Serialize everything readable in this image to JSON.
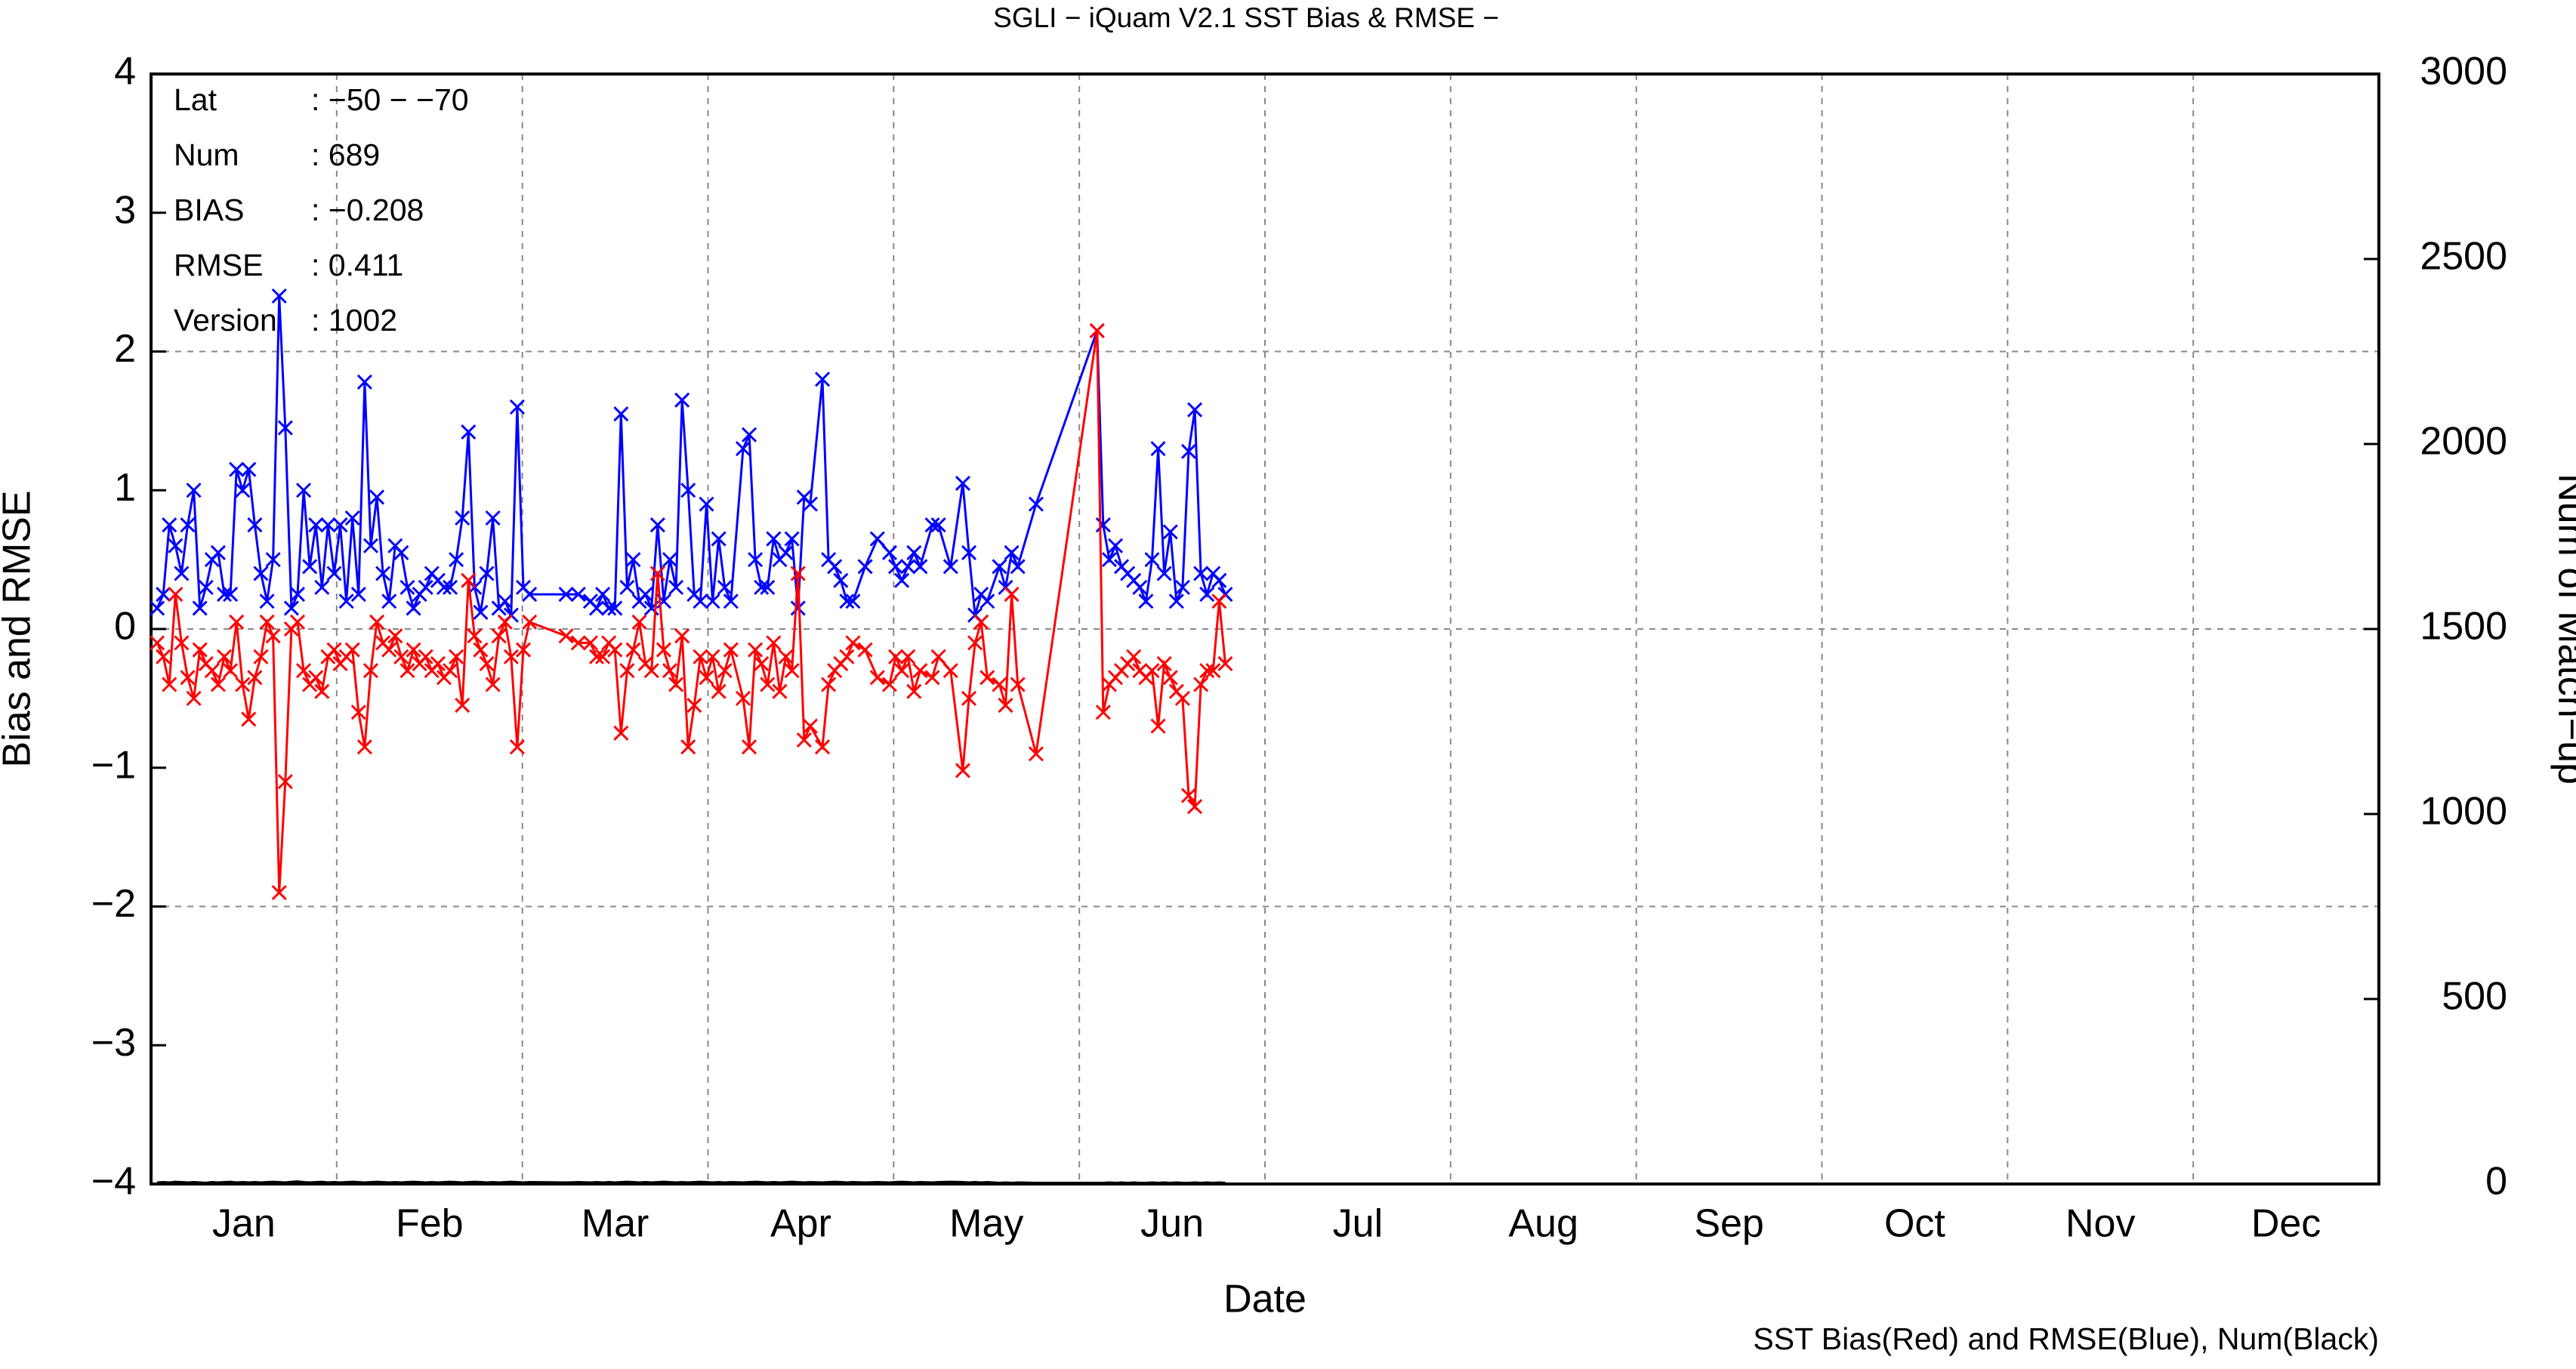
{
  "chart_data": {
    "type": "line",
    "title": "SGLI − iQuam V2.1 SST Bias & RMSE  −",
    "x_label": "Date",
    "y_label": "Bias and RMSE",
    "y2_label": "Num of Match−up",
    "footer": "SST Bias(Red) and RMSE(Blue), Num(Black)",
    "annotations": [
      {
        "label": "Lat",
        "value": ": −50 − −70"
      },
      {
        "label": "Num",
        "value": ": 689"
      },
      {
        "label": "BIAS",
        "value": ": −0.208"
      },
      {
        "label": "RMSE",
        "value": ": 0.411"
      },
      {
        "label": "Version",
        "value": ": 1002"
      }
    ],
    "categories": [
      "Jan",
      "Feb",
      "Mar",
      "Apr",
      "May",
      "Jun",
      "Jul",
      "Aug",
      "Sep",
      "Oct",
      "Nov",
      "Dec"
    ],
    "xlim": [
      0,
      365
    ],
    "ylim": [
      -4,
      4
    ],
    "yticks": [
      {
        "value": -4,
        "label": "−4"
      },
      {
        "value": -3,
        "label": "−3"
      },
      {
        "value": -2,
        "label": "−2"
      },
      {
        "value": -1,
        "label": "−1"
      },
      0,
      1,
      2,
      3,
      4
    ],
    "ygrid": [
      -2,
      0,
      2
    ],
    "y2lim": [
      0,
      3000
    ],
    "y2ticks": [
      0,
      500,
      1000,
      1500,
      2000,
      2500,
      3000
    ],
    "grid": true,
    "x": [
      1,
      2,
      3,
      4,
      5,
      6,
      7,
      8,
      9,
      10,
      11,
      12,
      13,
      14,
      15,
      16,
      17,
      18,
      19,
      20,
      21,
      22,
      23,
      24,
      25,
      26,
      27,
      28,
      29,
      30,
      31,
      32,
      33,
      34,
      35,
      36,
      37,
      38,
      39,
      40,
      41,
      42,
      43,
      44,
      45,
      46,
      47,
      48,
      49,
      50,
      51,
      52,
      53,
      54,
      55,
      56,
      57,
      58,
      59,
      60,
      61,
      62,
      68,
      70,
      72,
      73,
      74,
      75,
      76,
      77,
      78,
      79,
      80,
      81,
      82,
      83,
      84,
      85,
      86,
      87,
      88,
      89,
      90,
      91,
      92,
      93,
      94,
      95,
      97,
      98,
      99,
      100,
      101,
      102,
      103,
      104,
      105,
      106,
      107,
      108,
      110,
      111,
      112,
      113,
      114,
      115,
      117,
      119,
      121,
      122,
      123,
      124,
      125,
      126,
      128,
      129,
      131,
      133,
      134,
      135,
      136,
      137,
      139,
      140,
      141,
      142,
      145,
      155,
      156,
      157,
      158,
      159,
      160,
      161,
      162,
      163,
      164,
      165,
      166,
      167,
      168,
      169,
      170,
      171,
      172,
      173,
      174,
      175,
      176
    ],
    "series": [
      {
        "name": "RMSE",
        "color": "#0000ff",
        "values": [
          0.15,
          0.25,
          0.75,
          0.6,
          0.4,
          0.75,
          1.0,
          0.15,
          0.3,
          0.5,
          0.55,
          0.25,
          0.25,
          1.15,
          1.0,
          1.15,
          0.75,
          0.4,
          0.2,
          0.5,
          2.4,
          1.45,
          0.15,
          0.25,
          1.0,
          0.45,
          0.75,
          0.3,
          0.75,
          0.4,
          0.75,
          0.2,
          0.8,
          0.25,
          1.78,
          0.6,
          0.95,
          0.4,
          0.2,
          0.6,
          0.55,
          0.3,
          0.15,
          0.25,
          0.3,
          0.4,
          0.35,
          0.3,
          0.3,
          0.5,
          0.8,
          1.42,
          0.3,
          0.12,
          0.4,
          0.8,
          0.15,
          0.2,
          0.1,
          1.6,
          0.3,
          0.25,
          0.25,
          0.25,
          0.2,
          0.15,
          0.25,
          0.15,
          0.15,
          1.55,
          0.3,
          0.5,
          0.2,
          0.25,
          0.15,
          0.75,
          0.2,
          0.5,
          0.3,
          1.65,
          1.0,
          0.25,
          0.2,
          0.9,
          0.2,
          0.65,
          0.3,
          0.2,
          1.3,
          1.4,
          0.5,
          0.3,
          0.3,
          0.65,
          0.5,
          0.55,
          0.65,
          0.15,
          0.95,
          0.9,
          1.8,
          0.5,
          0.45,
          0.35,
          0.2,
          0.2,
          0.45,
          0.65,
          0.55,
          0.45,
          0.35,
          0.45,
          0.55,
          0.45,
          0.75,
          0.75,
          0.45,
          1.05,
          0.55,
          0.1,
          0.25,
          0.2,
          0.45,
          0.3,
          0.55,
          0.45,
          0.9,
          2.15,
          0.75,
          0.5,
          0.6,
          0.45,
          0.4,
          0.35,
          0.3,
          0.2,
          0.5,
          1.3,
          0.4,
          0.7,
          0.2,
          0.3,
          1.28,
          1.58,
          0.4,
          0.25,
          0.4,
          0.35,
          0.25
        ]
      },
      {
        "name": "Bias",
        "color": "#ff0000",
        "values": [
          -0.1,
          -0.2,
          -0.4,
          0.25,
          -0.1,
          -0.35,
          -0.5,
          -0.15,
          -0.25,
          -0.3,
          -0.4,
          -0.2,
          -0.3,
          0.05,
          -0.4,
          -0.65,
          -0.35,
          -0.2,
          0.05,
          -0.05,
          -1.9,
          -1.1,
          0,
          0.05,
          -0.3,
          -0.4,
          -0.35,
          -0.45,
          -0.2,
          -0.15,
          -0.25,
          -0.2,
          -0.15,
          -0.6,
          -0.85,
          -0.3,
          0.05,
          -0.1,
          -0.15,
          -0.05,
          -0.2,
          -0.3,
          -0.15,
          -0.25,
          -0.2,
          -0.3,
          -0.25,
          -0.35,
          -0.3,
          -0.2,
          -0.55,
          0.35,
          -0.05,
          -0.15,
          -0.25,
          -0.4,
          -0.05,
          0.05,
          -0.2,
          -0.85,
          -0.15,
          0.05,
          -0.05,
          -0.1,
          -0.1,
          -0.2,
          -0.2,
          -0.1,
          -0.15,
          -0.75,
          -0.3,
          -0.15,
          0.05,
          -0.25,
          -0.3,
          0.4,
          -0.15,
          -0.3,
          -0.4,
          -0.05,
          -0.85,
          -0.55,
          -0.2,
          -0.35,
          -0.2,
          -0.45,
          -0.3,
          -0.15,
          -0.5,
          -0.85,
          -0.15,
          -0.25,
          -0.4,
          -0.1,
          -0.45,
          -0.2,
          -0.3,
          0.4,
          -0.8,
          -0.7,
          -0.85,
          -0.4,
          -0.3,
          -0.25,
          -0.2,
          -0.1,
          -0.15,
          -0.35,
          -0.4,
          -0.2,
          -0.3,
          -0.2,
          -0.45,
          -0.3,
          -0.35,
          -0.2,
          -0.3,
          -1.02,
          -0.5,
          -0.1,
          0.05,
          -0.35,
          -0.4,
          -0.55,
          0.25,
          -0.4,
          -0.9,
          2.15,
          -0.6,
          -0.4,
          -0.35,
          -0.3,
          -0.25,
          -0.2,
          -0.3,
          -0.35,
          -0.3,
          -0.7,
          -0.25,
          -0.35,
          -0.45,
          -0.5,
          -1.2,
          -1.28,
          -0.4,
          -0.3,
          -0.3,
          0.2,
          -0.25
        ]
      },
      {
        "name": "Num",
        "color": "#000000",
        "axis": "y2",
        "values": [
          4,
          5,
          4,
          6,
          5,
          4,
          5,
          4,
          3,
          5,
          4,
          5,
          6,
          4,
          5,
          4,
          5,
          4,
          5,
          6,
          5,
          4,
          6,
          7,
          5,
          4,
          5,
          6,
          4,
          5,
          4,
          5,
          6,
          5,
          4,
          5,
          6,
          5,
          4,
          5,
          4,
          5,
          6,
          5,
          4,
          5,
          4,
          5,
          6,
          5,
          4,
          5,
          6,
          5,
          4,
          5,
          4,
          5,
          6,
          5,
          4,
          5,
          4,
          5,
          4,
          5,
          4,
          5,
          4,
          5,
          6,
          5,
          4,
          5,
          4,
          5,
          6,
          5,
          4,
          5,
          4,
          5,
          6,
          5,
          4,
          5,
          4,
          5,
          4,
          5,
          6,
          5,
          4,
          5,
          4,
          5,
          6,
          5,
          4,
          5,
          4,
          5,
          6,
          5,
          4,
          5,
          4,
          5,
          4,
          5,
          6,
          5,
          4,
          5,
          4,
          5,
          6,
          5,
          4,
          5,
          4,
          5,
          3,
          4,
          3,
          4,
          3,
          3,
          3,
          4,
          3,
          4,
          3,
          4,
          3,
          3,
          4,
          3,
          4,
          3,
          4,
          3,
          3,
          4,
          3,
          4,
          3,
          4,
          3
        ]
      }
    ]
  }
}
